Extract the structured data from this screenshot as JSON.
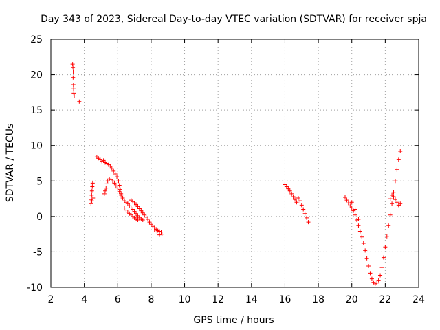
{
  "chart_data": {
    "type": "scatter",
    "title": "Day 343 of 2023, Sidereal Day-to-day VTEC variation (SDTVAR) for receiver spja",
    "xlabel": "GPS time / hours",
    "ylabel": "SDTVAR / TECUs",
    "xlim": [
      2,
      24
    ],
    "ylim": [
      -10,
      25
    ],
    "x_ticks": [
      2,
      4,
      6,
      8,
      10,
      12,
      14,
      16,
      18,
      20,
      22,
      24
    ],
    "y_ticks": [
      -10,
      -5,
      0,
      5,
      10,
      15,
      20,
      25
    ],
    "x_tick_labels": [
      "2",
      "4",
      "6",
      "8",
      "10",
      "12",
      "14",
      "16",
      "18",
      "20",
      "22",
      "24"
    ],
    "y_tick_labels": [
      "-10",
      "-5",
      "0",
      "5",
      "10",
      "15",
      "20",
      "25"
    ],
    "grid": true,
    "marker": "+",
    "series": [
      {
        "name": "SDTVAR",
        "color": "#ff0000",
        "points": [
          [
            3.3,
            21.5
          ],
          [
            3.32,
            21.0
          ],
          [
            3.34,
            20.4
          ],
          [
            3.33,
            19.6
          ],
          [
            3.35,
            18.6
          ],
          [
            3.36,
            18.0
          ],
          [
            3.37,
            17.4
          ],
          [
            3.4,
            17.0
          ],
          [
            3.7,
            16.2
          ],
          [
            4.4,
            1.8
          ],
          [
            4.42,
            2.4
          ],
          [
            4.44,
            3.0
          ],
          [
            4.46,
            3.6
          ],
          [
            4.48,
            4.2
          ],
          [
            4.5,
            4.7
          ],
          [
            4.52,
            2.6
          ],
          [
            4.45,
            2.2
          ],
          [
            4.75,
            8.4
          ],
          [
            4.85,
            8.2
          ],
          [
            4.95,
            8.0
          ],
          [
            5.05,
            7.8
          ],
          [
            5.15,
            7.9
          ],
          [
            5.25,
            7.6
          ],
          [
            5.35,
            7.5
          ],
          [
            5.45,
            7.3
          ],
          [
            5.55,
            7.1
          ],
          [
            5.65,
            6.8
          ],
          [
            5.75,
            6.4
          ],
          [
            5.85,
            6.0
          ],
          [
            5.95,
            5.6
          ],
          [
            6.05,
            5.0
          ],
          [
            6.1,
            4.4
          ],
          [
            6.15,
            3.8
          ],
          [
            6.2,
            3.2
          ],
          [
            5.2,
            3.2
          ],
          [
            5.25,
            3.6
          ],
          [
            5.3,
            4.0
          ],
          [
            5.35,
            4.6
          ],
          [
            5.4,
            5.0
          ],
          [
            5.5,
            5.3
          ],
          [
            5.6,
            5.2
          ],
          [
            5.7,
            5.0
          ],
          [
            5.8,
            4.7
          ],
          [
            5.9,
            4.3
          ],
          [
            6.0,
            4.0
          ],
          [
            6.1,
            3.5
          ],
          [
            6.2,
            3.0
          ],
          [
            6.3,
            2.6
          ],
          [
            6.4,
            2.2
          ],
          [
            6.5,
            2.0
          ],
          [
            6.6,
            1.8
          ],
          [
            6.7,
            1.5
          ],
          [
            6.8,
            1.2
          ],
          [
            6.9,
            1.0
          ],
          [
            7.0,
            0.7
          ],
          [
            7.1,
            0.4
          ],
          [
            7.2,
            0.1
          ],
          [
            7.3,
            -0.2
          ],
          [
            7.4,
            -0.4
          ],
          [
            7.5,
            -0.5
          ],
          [
            6.4,
            1.2
          ],
          [
            6.5,
            0.9
          ],
          [
            6.6,
            0.6
          ],
          [
            6.7,
            0.4
          ],
          [
            6.8,
            0.2
          ],
          [
            6.9,
            0.0
          ],
          [
            7.0,
            -0.2
          ],
          [
            7.1,
            -0.4
          ],
          [
            7.2,
            -0.5
          ],
          [
            6.8,
            2.3
          ],
          [
            6.9,
            2.1
          ],
          [
            7.0,
            1.9
          ],
          [
            7.1,
            1.7
          ],
          [
            7.2,
            1.4
          ],
          [
            7.3,
            1.1
          ],
          [
            7.4,
            0.8
          ],
          [
            7.5,
            0.5
          ],
          [
            7.6,
            0.2
          ],
          [
            7.7,
            -0.1
          ],
          [
            7.8,
            -0.4
          ],
          [
            7.9,
            -0.8
          ],
          [
            8.0,
            -1.1
          ],
          [
            8.1,
            -1.4
          ],
          [
            8.2,
            -1.6
          ],
          [
            8.3,
            -1.8
          ],
          [
            8.4,
            -2.0
          ],
          [
            8.5,
            -2.1
          ],
          [
            8.6,
            -2.2
          ],
          [
            8.65,
            -2.5
          ],
          [
            8.2,
            -1.9
          ],
          [
            8.35,
            -2.2
          ],
          [
            8.5,
            -2.6
          ],
          [
            16.0,
            4.5
          ],
          [
            16.1,
            4.2
          ],
          [
            16.2,
            3.9
          ],
          [
            16.3,
            3.6
          ],
          [
            16.4,
            3.2
          ],
          [
            16.5,
            2.8
          ],
          [
            16.6,
            2.4
          ],
          [
            16.7,
            2.0
          ],
          [
            16.8,
            2.6
          ],
          [
            16.9,
            2.2
          ],
          [
            17.0,
            1.6
          ],
          [
            17.1,
            1.0
          ],
          [
            17.2,
            0.4
          ],
          [
            17.3,
            -0.2
          ],
          [
            17.4,
            -0.8
          ],
          [
            19.6,
            2.7
          ],
          [
            19.7,
            2.3
          ],
          [
            19.8,
            1.9
          ],
          [
            19.9,
            1.5
          ],
          [
            20.0,
            1.2
          ],
          [
            20.1,
            0.8
          ],
          [
            20.2,
            0.2
          ],
          [
            20.3,
            -0.5
          ],
          [
            20.4,
            -1.3
          ],
          [
            20.5,
            -2.1
          ],
          [
            20.6,
            -2.9
          ],
          [
            20.7,
            -3.8
          ],
          [
            20.8,
            -4.8
          ],
          [
            20.9,
            -5.9
          ],
          [
            21.0,
            -7.0
          ],
          [
            21.1,
            -8.0
          ],
          [
            21.2,
            -8.8
          ],
          [
            21.3,
            -9.3
          ],
          [
            21.4,
            -9.5
          ],
          [
            21.5,
            -9.4
          ],
          [
            21.6,
            -9.0
          ],
          [
            21.7,
            -8.3
          ],
          [
            21.8,
            -7.2
          ],
          [
            21.9,
            -5.8
          ],
          [
            22.0,
            -4.3
          ],
          [
            22.1,
            -2.8
          ],
          [
            22.2,
            -1.3
          ],
          [
            22.3,
            0.2
          ],
          [
            22.4,
            1.8
          ],
          [
            22.5,
            3.4
          ],
          [
            22.6,
            5.0
          ],
          [
            22.7,
            6.6
          ],
          [
            22.8,
            8.0
          ],
          [
            22.9,
            9.2
          ],
          [
            22.5,
            2.8
          ],
          [
            22.6,
            2.4
          ],
          [
            22.7,
            2.0
          ],
          [
            22.8,
            1.6
          ],
          [
            22.9,
            1.8
          ],
          [
            22.3,
            2.5
          ],
          [
            22.4,
            3.0
          ],
          [
            20.0,
            2.0
          ],
          [
            20.2,
            1.0
          ],
          [
            20.4,
            -0.4
          ]
        ]
      }
    ]
  }
}
